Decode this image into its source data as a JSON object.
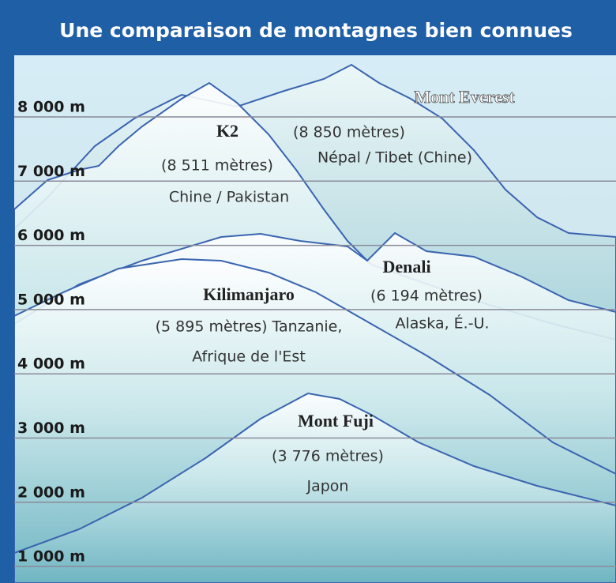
{
  "title": "Une comparaison de montagnes bien connues",
  "levels": [
    "8 000 m",
    "7 000 m",
    "6 000 m",
    "5 000 m",
    "4 000 m",
    "3 000 m",
    "2 000 m",
    "1 000 m"
  ],
  "mountains": [
    {
      "name": "Mont Everest",
      "height": "(8 850 mètres)",
      "location": "Népal / Tibet (Chine)"
    },
    {
      "name": "K2",
      "height": "(8 511 mètres)",
      "location": "Chine / Pakistan"
    },
    {
      "name": "Denali",
      "height": "(6 194 mètres)",
      "location": "Alaska, É.-U."
    },
    {
      "name": "Kilimanjaro",
      "height": "(5 895 mètres) Tanzanie,",
      "location": "Afrique de l'Est"
    },
    {
      "name": "Mont Fuji",
      "height": "(3 776 mètres)",
      "location": "Japon"
    }
  ]
}
